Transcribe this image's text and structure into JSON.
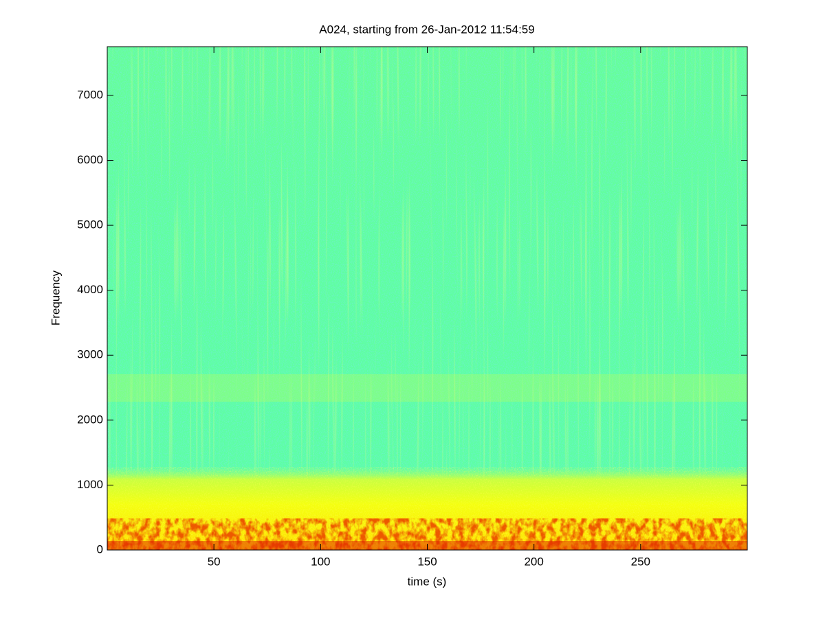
{
  "chart_data": {
    "type": "spectrogram",
    "title": "A024, starting from 26-Jan-2012 11:54:59",
    "x_label": "time (s)",
    "y_label": "Frequency",
    "xlim": [
      0,
      300
    ],
    "xticks": [
      50,
      100,
      150,
      200,
      250
    ],
    "ylim": [
      0,
      7750
    ],
    "yticks": [
      0,
      1000,
      2000,
      3000,
      4000,
      5000,
      6000,
      7000
    ]
  }
}
